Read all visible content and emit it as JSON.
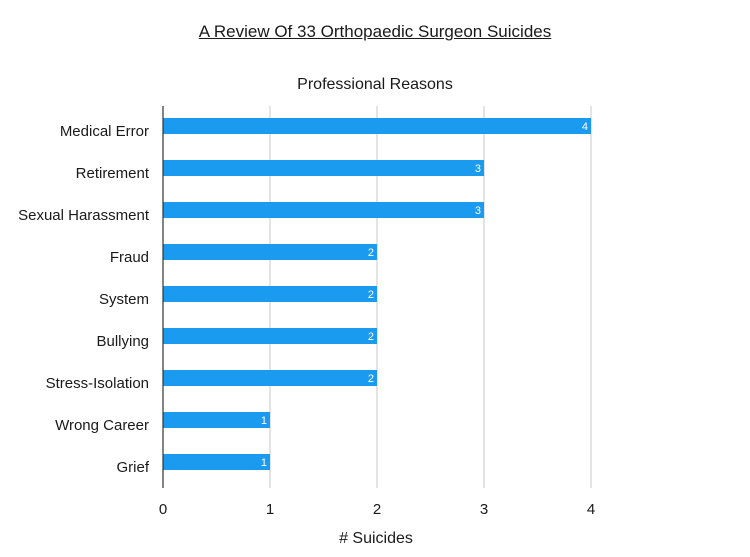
{
  "chart_data": {
    "type": "bar",
    "orientation": "horizontal",
    "title": "A Review Of 33 Orthopaedic Surgeon Suicides",
    "subtitle": "Professional Reasons",
    "xlabel": "# Suicides",
    "ylabel": "",
    "xlim": [
      0,
      4
    ],
    "x_ticks": [
      "0",
      "1",
      "2",
      "3",
      "4"
    ],
    "grid": "vertical",
    "categories": [
      "Medical Error",
      "Retirement",
      "Sexual Harassment",
      "Fraud",
      "System",
      "Bullying",
      "Stress-Isolation",
      "Wrong Career",
      "Grief"
    ],
    "values": [
      4,
      3,
      3,
      2,
      2,
      2,
      2,
      1,
      1
    ],
    "data_labels": [
      "4",
      "3",
      "3",
      "2",
      "2",
      "2",
      "2",
      "1",
      "1"
    ],
    "bar_color": "#1a9bf0",
    "grid_color": "#c8c8c8",
    "axis_color": "#333333"
  }
}
